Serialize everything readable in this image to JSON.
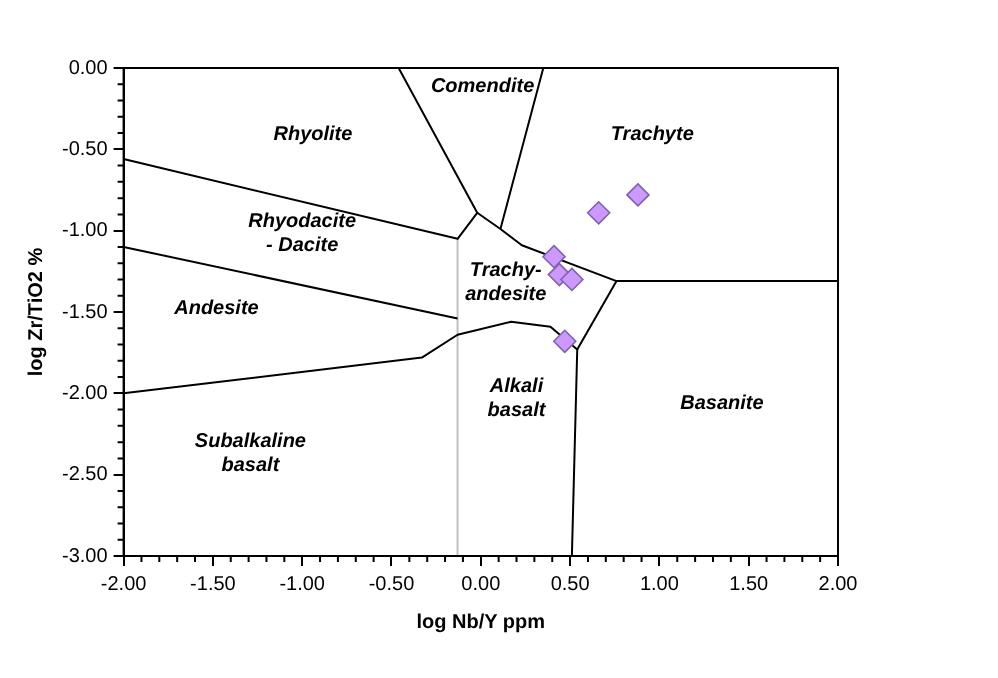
{
  "chart_data": {
    "type": "scatter",
    "xlabel": "log Nb/Y ppm",
    "ylabel": "log Zr/TiO2 %",
    "xlim": [
      -2,
      2
    ],
    "ylim": [
      -3,
      0
    ],
    "xticks": [
      {
        "value": -2,
        "label": "-2.00"
      },
      {
        "value": -1.5,
        "label": "-1.50"
      },
      {
        "value": -1,
        "label": "-1.00"
      },
      {
        "value": -0.5,
        "label": "-0.50"
      },
      {
        "value": 0,
        "label": "0.00"
      },
      {
        "value": 0.5,
        "label": "0.50"
      },
      {
        "value": 1,
        "label": "1.00"
      },
      {
        "value": 1.5,
        "label": "1.50"
      },
      {
        "value": 2,
        "label": "2.00"
      }
    ],
    "yticks": [
      {
        "value": 0,
        "label": "0.00"
      },
      {
        "value": -0.5,
        "label": "-0.50"
      },
      {
        "value": -1,
        "label": "-1.00"
      },
      {
        "value": -1.5,
        "label": "-1.50"
      },
      {
        "value": -2,
        "label": "-2.00"
      },
      {
        "value": -2.5,
        "label": "-2.50"
      },
      {
        "value": -3,
        "label": "-3.00"
      }
    ],
    "grid": false,
    "legend": false,
    "marker": "diamond",
    "series": [
      {
        "type": "scatter",
        "color": "#cc99ff",
        "x": [
          0.88,
          0.66,
          0.41,
          0.44,
          0.51,
          0.47
        ],
        "values": [
          -0.78,
          -0.89,
          -1.16,
          -1.27,
          -1.3,
          -1.68
        ]
      },
      {
        "type": "line",
        "color": "#000000",
        "marker": "none",
        "x": [
          -2,
          -0.13,
          -0.02,
          -0.46
        ],
        "values": [
          -0.56,
          -1.05,
          -0.89,
          0
        ]
      },
      {
        "type": "line",
        "color": "#000000",
        "marker": "none",
        "x": [
          -0.02,
          0.11,
          0.35
        ],
        "values": [
          -0.89,
          -0.99,
          0
        ]
      },
      {
        "type": "line",
        "color": "#000000",
        "marker": "none",
        "x": [
          0.11,
          0.23,
          0.76,
          2
        ],
        "values": [
          -0.99,
          -1.09,
          -1.31,
          -1.31
        ]
      },
      {
        "type": "line",
        "color": "#000000",
        "marker": "none",
        "x": [
          -2,
          -0.13
        ],
        "values": [
          -1.1,
          -1.54
        ]
      },
      {
        "type": "line",
        "color": "#000000",
        "marker": "none",
        "x": [
          -2,
          -0.33,
          -0.13,
          0.17,
          0.39,
          0.54,
          0.51
        ],
        "values": [
          -2,
          -1.78,
          -1.64,
          -1.56,
          -1.59,
          -1.73,
          -3
        ]
      },
      {
        "type": "line",
        "color": "#000000",
        "marker": "none",
        "x": [
          0.54,
          0.76
        ],
        "values": [
          -1.73,
          -1.31
        ]
      },
      {
        "type": "line",
        "color": "#c0c0c0",
        "marker": "none",
        "x": [
          -0.13,
          -0.13
        ],
        "values": [
          -1.05,
          -3
        ]
      }
    ],
    "annotations": [
      "Comendite",
      "Rhyolite",
      "Trachyte",
      "Rhyodacite\n- Dacite",
      "Trachy-\nandesite",
      "Andesite",
      "Alkali\nbasalt",
      "Basanite",
      "Subalkaline\nbasalt"
    ]
  }
}
